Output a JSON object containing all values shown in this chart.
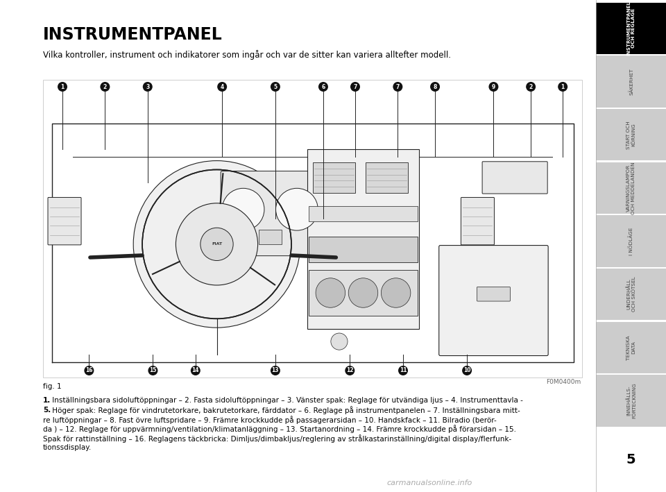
{
  "title": "INSTRUMENTPANEL",
  "subtitle": "Vilka kontroller, instrument och indikatorer som ingår och var de sitter kan variera alltefter modell.",
  "fig_label": "fig. 1",
  "fig_code": "F0M0400m",
  "desc_line1": "1. Inställningsbara sidoluftöppningar – 2. Fasta sidoluftöppningar – 3. Vänster spak: Reglage för utvändiga ljus – 4. Instrumenttavla -",
  "desc_line2": "5. Höger spak: Reglage för vindrutetorkare, bakrutetorkare, färddator – 6. Reglage på instrumentpanelen – 7. Inställningsbara mitt-",
  "desc_line3": "re luftöppningar – 8. Fast övre luftspridare – 9. Främre krockkudde på passagerarsidan – 10. Handskfack – 11. Bilradio (berör-",
  "desc_line4": "da ) – 12. Reglage för uppvärmning/ventilation/klimatanläggning – 13. Startanordning – 14. Främre krockkudde på förarsidan – 15.",
  "desc_line5": "Spak för rattinställning – 16. Reglagens täckbricka: Dimljus/dimbakljus/reglering av strålkastarinställning/digital display/flerfunk-",
  "desc_line6": "tionssdisplay.",
  "desc_bold_line1_prefix": "1.",
  "desc_bold_line2_prefix": "5.",
  "sidebar_tabs": [
    {
      "label": "INSTRUMENTPANEL\nOCH REGLAGE",
      "active": true
    },
    {
      "label": "SÄKERHET",
      "active": false
    },
    {
      "label": "START OCH\nKÖRNING",
      "active": false
    },
    {
      "label": "VARNINGSLAMPOR\nOCH MEDDELANDEN",
      "active": false
    },
    {
      "label": "I NÖDLÄGE",
      "active": false
    },
    {
      "label": "UNDERHÅLL\nOCH SKÖTSEL",
      "active": false
    },
    {
      "label": "TEKNISKA\nDATA",
      "active": false
    },
    {
      "label": "INNEHÅLLS-\nFÖRTECKNING",
      "active": false
    }
  ],
  "page_number": "5",
  "bg_color": "#ffffff",
  "sidebar_active_bg": "#000000",
  "sidebar_inactive_bg": "#cccccc",
  "sidebar_active_text": "#ffffff",
  "sidebar_inactive_text": "#444444",
  "callout_bg": "#111111",
  "callout_text": "#ffffff",
  "line_color": "#222222",
  "dash_fill": "#f0f0f0",
  "watermark": "carmanualsonline.info"
}
